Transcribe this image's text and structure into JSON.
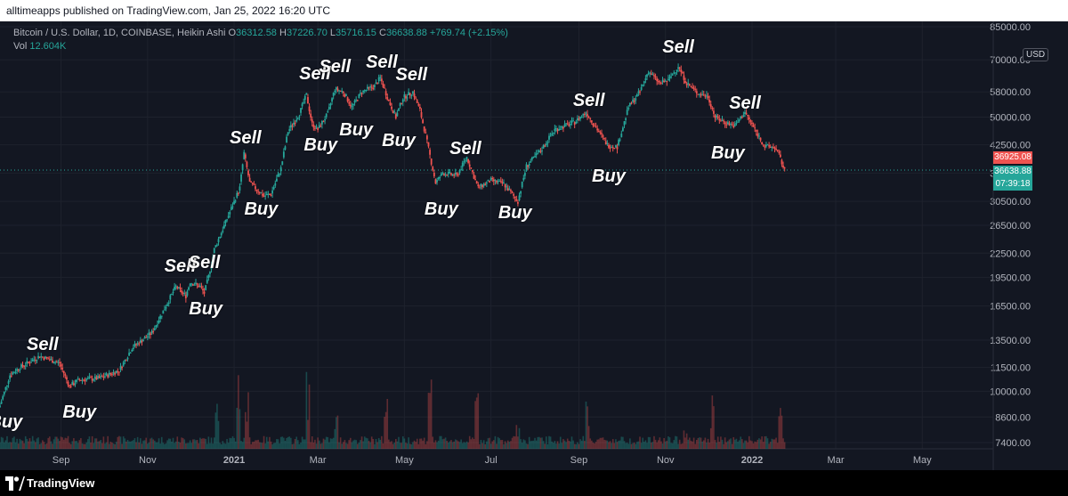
{
  "header": {
    "published_by": "alltimeapps published on TradingView.com, Jan 25, 2022 16:20 UTC"
  },
  "legend": {
    "symbol": "Bitcoin / U.S. Dollar, 1D, COINBASE, Heikin Ashi",
    "o_label": "O",
    "o_value": "36312.58",
    "h_label": "H",
    "h_value": "37226.70",
    "l_label": "L",
    "l_value": "35716.15",
    "c_label": "C",
    "c_value": "36638.88",
    "change": "+769.74 (+2.15%)",
    "vol_label": "Vol",
    "vol_value": "12.604K"
  },
  "currency_badge": "USD",
  "price_labels": {
    "last_red": "36925.08",
    "last_green": "36638.88",
    "countdown": "07:39:18"
  },
  "footer": {
    "brand": "TradingView"
  },
  "colors": {
    "up": "#26a69a",
    "down": "#ef5350",
    "background": "#131722",
    "grid": "#1e222d",
    "axis_text": "#b2b5be"
  },
  "chart_data": {
    "type": "candlestick",
    "chart_style": "Heikin Ashi",
    "y_scale": "log",
    "y_range": [
      7400,
      85000
    ],
    "y_ticks": [
      "85000.00",
      "70000.00",
      "58000.00",
      "50000.00",
      "42500.00",
      "36000.00",
      "30500.00",
      "26500.00",
      "22500.00",
      "19500.00",
      "16500.00",
      "13500.00",
      "11500.00",
      "10000.00",
      "8600.00",
      "7400.00"
    ],
    "x_range": [
      "2020-07-20",
      "2022-06-20"
    ],
    "x_ticks": [
      "Sep",
      "Nov",
      "2021",
      "Mar",
      "May",
      "Jul",
      "Sep",
      "Nov",
      "2022",
      "Mar",
      "May"
    ],
    "grid": true,
    "series": [
      {
        "name": "BTCUSD",
        "path": [
          [
            "2020-07-20",
            9200
          ],
          [
            "2020-07-27",
            11000
          ],
          [
            "2020-08-03",
            11500
          ],
          [
            "2020-08-17",
            12300
          ],
          [
            "2020-08-31",
            11800
          ],
          [
            "2020-09-07",
            10300
          ],
          [
            "2020-09-14",
            10700
          ],
          [
            "2020-09-28",
            10800
          ],
          [
            "2020-10-12",
            11300
          ],
          [
            "2020-10-21",
            12900
          ],
          [
            "2020-11-04",
            14100
          ],
          [
            "2020-11-12",
            16000
          ],
          [
            "2020-11-21",
            18500
          ],
          [
            "2020-11-28",
            17500
          ],
          [
            "2020-12-01",
            19000
          ],
          [
            "2020-12-08",
            18500
          ],
          [
            "2020-12-11",
            17800
          ],
          [
            "2020-12-14",
            19600
          ],
          [
            "2020-12-18",
            23000
          ],
          [
            "2020-12-27",
            27500
          ],
          [
            "2021-01-05",
            33000
          ],
          [
            "2021-01-08",
            40500
          ],
          [
            "2021-01-12",
            34000
          ],
          [
            "2021-01-22",
            31500
          ],
          [
            "2021-01-27",
            31800
          ],
          [
            "2021-02-03",
            37000
          ],
          [
            "2021-02-08",
            46000
          ],
          [
            "2021-02-16",
            51000
          ],
          [
            "2021-02-21",
            57000
          ],
          [
            "2021-02-25",
            48000
          ],
          [
            "2021-03-01",
            46500
          ],
          [
            "2021-03-08",
            51000
          ],
          [
            "2021-03-13",
            59000
          ],
          [
            "2021-03-19",
            58000
          ],
          [
            "2021-03-25",
            53000
          ],
          [
            "2021-04-01",
            58000
          ],
          [
            "2021-04-10",
            60000
          ],
          [
            "2021-04-14",
            63000
          ],
          [
            "2021-04-20",
            55000
          ],
          [
            "2021-04-25",
            50000
          ],
          [
            "2021-04-30",
            56000
          ],
          [
            "2021-05-07",
            58000
          ],
          [
            "2021-05-12",
            52000
          ],
          [
            "2021-05-16",
            45000
          ],
          [
            "2021-05-23",
            34000
          ],
          [
            "2021-05-28",
            36000
          ],
          [
            "2021-06-07",
            35500
          ],
          [
            "2021-06-14",
            39500
          ],
          [
            "2021-06-22",
            33000
          ],
          [
            "2021-07-01",
            34500
          ],
          [
            "2021-07-10",
            33800
          ],
          [
            "2021-07-20",
            30500
          ],
          [
            "2021-07-26",
            37500
          ],
          [
            "2021-08-05",
            41000
          ],
          [
            "2021-08-15",
            46500
          ],
          [
            "2021-08-29",
            48500
          ],
          [
            "2021-09-06",
            51500
          ],
          [
            "2021-09-14",
            46500
          ],
          [
            "2021-09-21",
            42500
          ],
          [
            "2021-09-28",
            42000
          ],
          [
            "2021-10-06",
            53000
          ],
          [
            "2021-10-14",
            58000
          ],
          [
            "2021-10-20",
            65500
          ],
          [
            "2021-10-28",
            61000
          ],
          [
            "2021-11-03",
            62000
          ],
          [
            "2021-11-10",
            67500
          ],
          [
            "2021-11-16",
            61000
          ],
          [
            "2021-11-24",
            57500
          ],
          [
            "2021-12-01",
            56500
          ],
          [
            "2021-12-06",
            50000
          ],
          [
            "2021-12-13",
            48500
          ],
          [
            "2021-12-20",
            47500
          ],
          [
            "2021-12-27",
            51500
          ],
          [
            "2022-01-03",
            46500
          ],
          [
            "2022-01-10",
            42000
          ],
          [
            "2022-01-17",
            42000
          ],
          [
            "2022-01-20",
            40000
          ],
          [
            "2022-01-24",
            36600
          ]
        ]
      }
    ],
    "annotations": [
      {
        "text": "Buy",
        "date": "2020-07-24",
        "price": 8300
      },
      {
        "text": "Sell",
        "date": "2020-08-19",
        "price": 13100
      },
      {
        "text": "Buy",
        "date": "2020-09-14",
        "price": 8800
      },
      {
        "text": "Sell",
        "date": "2020-11-24",
        "price": 20700
      },
      {
        "text": "Sell",
        "date": "2020-12-11",
        "price": 21200
      },
      {
        "text": "Buy",
        "date": "2020-12-12",
        "price": 16100
      },
      {
        "text": "Sell",
        "date": "2021-01-09",
        "price": 44000
      },
      {
        "text": "Buy",
        "date": "2021-01-20",
        "price": 28900
      },
      {
        "text": "Sell",
        "date": "2021-02-27",
        "price": 64000
      },
      {
        "text": "Buy",
        "date": "2021-03-03",
        "price": 42200
      },
      {
        "text": "Sell",
        "date": "2021-03-13",
        "price": 67000
      },
      {
        "text": "Buy",
        "date": "2021-03-28",
        "price": 46100
      },
      {
        "text": "Sell",
        "date": "2021-04-15",
        "price": 68500
      },
      {
        "text": "Buy",
        "date": "2021-04-27",
        "price": 43300
      },
      {
        "text": "Sell",
        "date": "2021-05-06",
        "price": 63800
      },
      {
        "text": "Buy",
        "date": "2021-05-27",
        "price": 29000
      },
      {
        "text": "Sell",
        "date": "2021-06-13",
        "price": 41300
      },
      {
        "text": "Buy",
        "date": "2021-07-18",
        "price": 28400
      },
      {
        "text": "Sell",
        "date": "2021-09-08",
        "price": 54800
      },
      {
        "text": "Buy",
        "date": "2021-09-22",
        "price": 35200
      },
      {
        "text": "Sell",
        "date": "2021-11-10",
        "price": 75000
      },
      {
        "text": "Sell",
        "date": "2021-12-27",
        "price": 54000
      },
      {
        "text": "Buy",
        "date": "2021-12-15",
        "price": 40300
      }
    ],
    "volume": {
      "shown": true,
      "series": [
        [
          "2020-12-20",
          0.45
        ],
        [
          "2021-01-04",
          0.85
        ],
        [
          "2021-01-10",
          0.55
        ],
        [
          "2021-02-22",
          0.75
        ],
        [
          "2021-03-14",
          0.35
        ],
        [
          "2021-04-18",
          0.55
        ],
        [
          "2021-05-19",
          0.95
        ],
        [
          "2021-06-21",
          0.6
        ],
        [
          "2021-07-20",
          0.3
        ],
        [
          "2021-09-07",
          0.55
        ],
        [
          "2021-11-15",
          0.25
        ],
        [
          "2021-12-04",
          0.5
        ],
        [
          "2022-01-21",
          0.45
        ]
      ]
    }
  }
}
